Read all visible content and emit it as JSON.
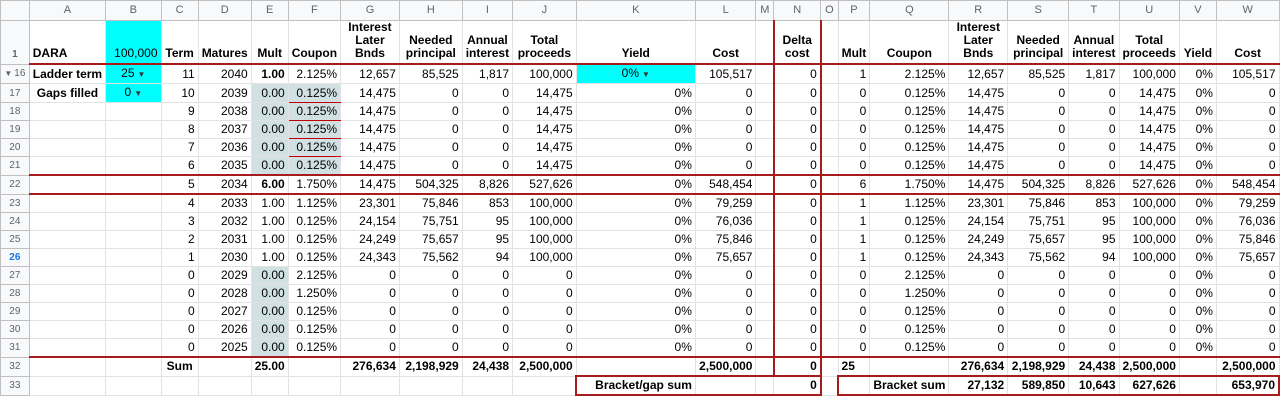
{
  "columns": [
    "A",
    "B",
    "C",
    "D",
    "E",
    "F",
    "G",
    "H",
    "I",
    "J",
    "K",
    "L",
    "M",
    "N",
    "O",
    "P",
    "Q",
    "R",
    "S",
    "T",
    "U",
    "V",
    "W"
  ],
  "header_row_number": "1",
  "headers": {
    "A": "DARA",
    "B": "100,000",
    "C": "Term",
    "D": "Matures",
    "E": "Mult",
    "F": "Coupon",
    "G": "Interest Later Bnds",
    "H": "Needed principal",
    "I": "Annual interest",
    "J": "Total proceeds",
    "K": "Yield",
    "L": "Cost",
    "M": "",
    "N": "Delta cost",
    "O": "",
    "P": "Mult",
    "Q": "Coupon",
    "R": "Interest Later Bnds",
    "S": "Needed principal",
    "T": "Annual interest",
    "U": "Total proceeds",
    "V": "Yield",
    "W": "Cost"
  },
  "controls": {
    "ladder_term_label": "Ladder term",
    "ladder_term_value": "25",
    "gaps_filled_label": "Gaps filled",
    "gaps_filled_value": "0",
    "yield_value": "0%"
  },
  "rows": [
    {
      "num": "16",
      "C": "11",
      "D": "2040",
      "E": "1.00",
      "F": "2.125%",
      "G": "12,657",
      "H": "85,525",
      "I": "1,817",
      "J": "100,000",
      "K": "0%",
      "L": "105,517",
      "N": "0",
      "P": "1",
      "Q": "2.125%",
      "R": "12,657",
      "S": "85,525",
      "T": "1,817",
      "U": "100,000",
      "V": "0%",
      "W": "105,517"
    },
    {
      "num": "17",
      "C": "10",
      "D": "2039",
      "E": "0.00",
      "F": "0.125%",
      "G": "14,475",
      "H": "0",
      "I": "0",
      "J": "14,475",
      "K": "0%",
      "L": "0",
      "N": "0",
      "P": "0",
      "Q": "0.125%",
      "R": "14,475",
      "S": "0",
      "T": "0",
      "U": "14,475",
      "V": "0%",
      "W": "0"
    },
    {
      "num": "18",
      "C": "9",
      "D": "2038",
      "E": "0.00",
      "F": "0.125%",
      "G": "14,475",
      "H": "0",
      "I": "0",
      "J": "14,475",
      "K": "0%",
      "L": "0",
      "N": "0",
      "P": "0",
      "Q": "0.125%",
      "R": "14,475",
      "S": "0",
      "T": "0",
      "U": "14,475",
      "V": "0%",
      "W": "0"
    },
    {
      "num": "19",
      "C": "8",
      "D": "2037",
      "E": "0.00",
      "F": "0.125%",
      "G": "14,475",
      "H": "0",
      "I": "0",
      "J": "14,475",
      "K": "0%",
      "L": "0",
      "N": "0",
      "P": "0",
      "Q": "0.125%",
      "R": "14,475",
      "S": "0",
      "T": "0",
      "U": "14,475",
      "V": "0%",
      "W": "0"
    },
    {
      "num": "20",
      "C": "7",
      "D": "2036",
      "E": "0.00",
      "F": "0.125%",
      "G": "14,475",
      "H": "0",
      "I": "0",
      "J": "14,475",
      "K": "0%",
      "L": "0",
      "N": "0",
      "P": "0",
      "Q": "0.125%",
      "R": "14,475",
      "S": "0",
      "T": "0",
      "U": "14,475",
      "V": "0%",
      "W": "0"
    },
    {
      "num": "21",
      "C": "6",
      "D": "2035",
      "E": "0.00",
      "F": "0.125%",
      "G": "14,475",
      "H": "0",
      "I": "0",
      "J": "14,475",
      "K": "0%",
      "L": "0",
      "N": "0",
      "P": "0",
      "Q": "0.125%",
      "R": "14,475",
      "S": "0",
      "T": "0",
      "U": "14,475",
      "V": "0%",
      "W": "0"
    },
    {
      "num": "22",
      "C": "5",
      "D": "2034",
      "E": "6.00",
      "F": "1.750%",
      "G": "14,475",
      "H": "504,325",
      "I": "8,826",
      "J": "527,626",
      "K": "0%",
      "L": "548,454",
      "N": "0",
      "P": "6",
      "Q": "1.750%",
      "R": "14,475",
      "S": "504,325",
      "T": "8,826",
      "U": "527,626",
      "V": "0%",
      "W": "548,454"
    },
    {
      "num": "23",
      "C": "4",
      "D": "2033",
      "E": "1.00",
      "F": "1.125%",
      "G": "23,301",
      "H": "75,846",
      "I": "853",
      "J": "100,000",
      "K": "0%",
      "L": "79,259",
      "N": "0",
      "P": "1",
      "Q": "1.125%",
      "R": "23,301",
      "S": "75,846",
      "T": "853",
      "U": "100,000",
      "V": "0%",
      "W": "79,259"
    },
    {
      "num": "24",
      "C": "3",
      "D": "2032",
      "E": "1.00",
      "F": "0.125%",
      "G": "24,154",
      "H": "75,751",
      "I": "95",
      "J": "100,000",
      "K": "0%",
      "L": "76,036",
      "N": "0",
      "P": "1",
      "Q": "0.125%",
      "R": "24,154",
      "S": "75,751",
      "T": "95",
      "U": "100,000",
      "V": "0%",
      "W": "76,036"
    },
    {
      "num": "25",
      "C": "2",
      "D": "2031",
      "E": "1.00",
      "F": "0.125%",
      "G": "24,249",
      "H": "75,657",
      "I": "95",
      "J": "100,000",
      "K": "0%",
      "L": "75,846",
      "N": "0",
      "P": "1",
      "Q": "0.125%",
      "R": "24,249",
      "S": "75,657",
      "T": "95",
      "U": "100,000",
      "V": "0%",
      "W": "75,846"
    },
    {
      "num": "26",
      "C": "1",
      "D": "2030",
      "E": "1.00",
      "F": "0.125%",
      "G": "24,343",
      "H": "75,562",
      "I": "94",
      "J": "100,000",
      "K": "0%",
      "L": "75,657",
      "N": "0",
      "P": "1",
      "Q": "0.125%",
      "R": "24,343",
      "S": "75,562",
      "T": "94",
      "U": "100,000",
      "V": "0%",
      "W": "75,657"
    },
    {
      "num": "27",
      "C": "0",
      "D": "2029",
      "E": "0.00",
      "F": "2.125%",
      "G": "0",
      "H": "0",
      "I": "0",
      "J": "0",
      "K": "0%",
      "L": "0",
      "N": "0",
      "P": "0",
      "Q": "2.125%",
      "R": "0",
      "S": "0",
      "T": "0",
      "U": "0",
      "V": "0%",
      "W": "0"
    },
    {
      "num": "28",
      "C": "0",
      "D": "2028",
      "E": "0.00",
      "F": "1.250%",
      "G": "0",
      "H": "0",
      "I": "0",
      "J": "0",
      "K": "0%",
      "L": "0",
      "N": "0",
      "P": "0",
      "Q": "1.250%",
      "R": "0",
      "S": "0",
      "T": "0",
      "U": "0",
      "V": "0%",
      "W": "0"
    },
    {
      "num": "29",
      "C": "0",
      "D": "2027",
      "E": "0.00",
      "F": "0.125%",
      "G": "0",
      "H": "0",
      "I": "0",
      "J": "0",
      "K": "0%",
      "L": "0",
      "N": "0",
      "P": "0",
      "Q": "0.125%",
      "R": "0",
      "S": "0",
      "T": "0",
      "U": "0",
      "V": "0%",
      "W": "0"
    },
    {
      "num": "30",
      "C": "0",
      "D": "2026",
      "E": "0.00",
      "F": "0.125%",
      "G": "0",
      "H": "0",
      "I": "0",
      "J": "0",
      "K": "0%",
      "L": "0",
      "N": "0",
      "P": "0",
      "Q": "0.125%",
      "R": "0",
      "S": "0",
      "T": "0",
      "U": "0",
      "V": "0%",
      "W": "0"
    },
    {
      "num": "31",
      "C": "0",
      "D": "2025",
      "E": "0.00",
      "F": "0.125%",
      "G": "0",
      "H": "0",
      "I": "0",
      "J": "0",
      "K": "0%",
      "L": "0",
      "N": "0",
      "P": "0",
      "Q": "0.125%",
      "R": "0",
      "S": "0",
      "T": "0",
      "U": "0",
      "V": "0%",
      "W": "0"
    }
  ],
  "sum_row": {
    "num": "32",
    "C": "Sum",
    "E": "25.00",
    "G": "276,634",
    "H": "2,198,929",
    "I": "24,438",
    "J": "2,500,000",
    "L": "2,500,000",
    "N": "0",
    "P": "25",
    "R": "276,634",
    "S": "2,198,929",
    "T": "24,438",
    "U": "2,500,000",
    "W": "2,500,000"
  },
  "bracket_row": {
    "num": "33",
    "K": "Bracket/gap sum",
    "N": "0",
    "Q": "Bracket sum",
    "R": "27,132",
    "S": "589,850",
    "T": "10,643",
    "U": "627,626",
    "W": "653,970"
  }
}
